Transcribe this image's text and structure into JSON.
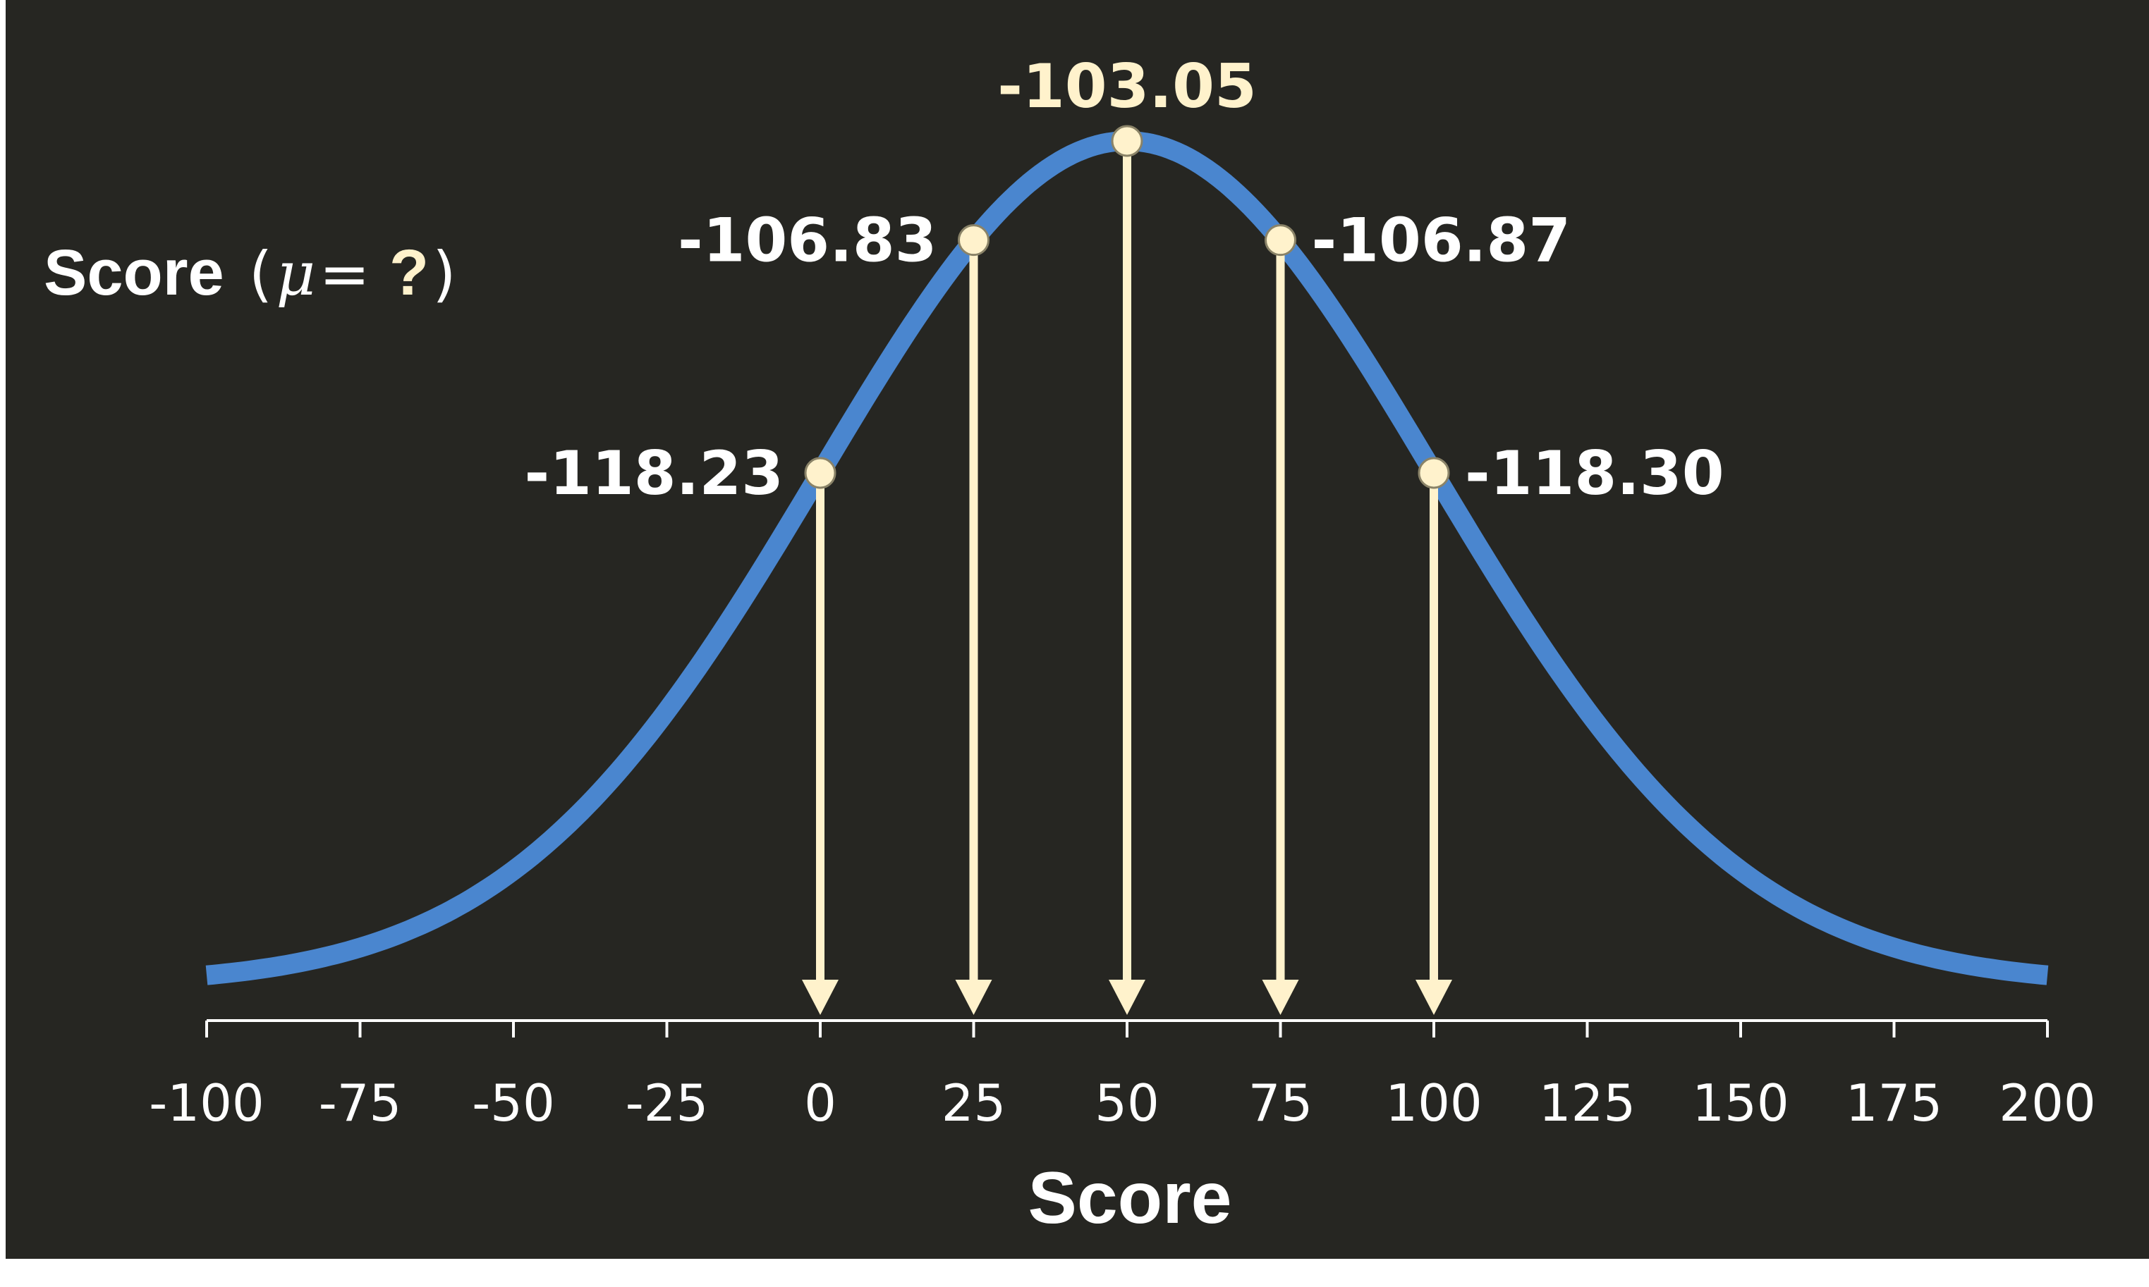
{
  "colors": {
    "background": "#262622",
    "curve": "#4A86CF",
    "arrow": "#FFF2CC",
    "text": "#FFFFFF",
    "highlight": "#FFF2CC",
    "axis": "#FFFFFF"
  },
  "chart_data": {
    "type": "line",
    "xlabel": "Score",
    "ylabel": {
      "prefix": "Score",
      "open": "(",
      "mu": "μ",
      "equals": " = ",
      "unknown": "?",
      "close": ")"
    },
    "xlim": [
      -100,
      200
    ],
    "xticks": [
      -100,
      -75,
      -50,
      -25,
      0,
      25,
      50,
      75,
      100,
      125,
      150,
      175,
      200
    ],
    "tick_labels": [
      "-100",
      "-75",
      "-50",
      "-25",
      "0",
      "25",
      "50",
      "75",
      "100",
      "125",
      "150",
      "175",
      "200"
    ],
    "curve": {
      "shape": "gaussian",
      "mean": 50,
      "sd": 50
    },
    "points": [
      {
        "x": 0,
        "label": "-118.23",
        "side": "left"
      },
      {
        "x": 25,
        "label": "-106.83",
        "side": "left"
      },
      {
        "x": 50,
        "label": "-103.05",
        "side": "top",
        "highlight": true
      },
      {
        "x": 75,
        "label": "-106.87",
        "side": "right"
      },
      {
        "x": 100,
        "label": "-118.30",
        "side": "right"
      }
    ],
    "grid": false,
    "legend": "none"
  }
}
